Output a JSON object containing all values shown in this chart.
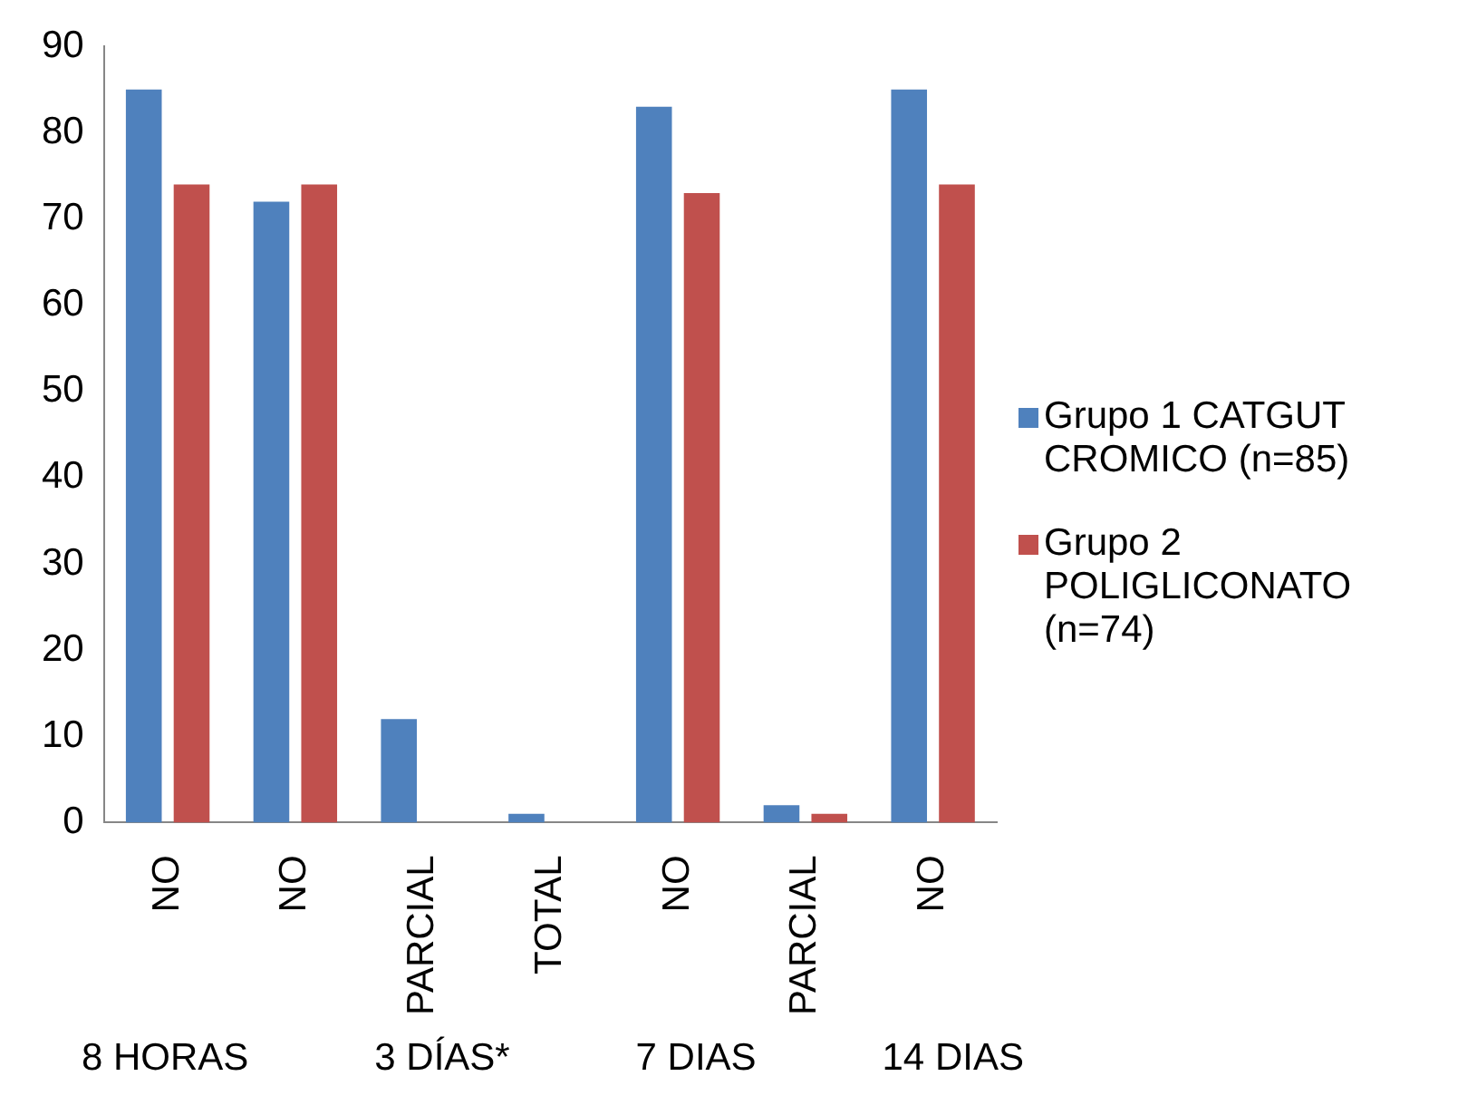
{
  "chart_data": {
    "type": "bar",
    "categories": [
      "NO",
      "NO",
      "PARCIAL",
      "TOTAL",
      "NO",
      "PARCIAL",
      "NO"
    ],
    "series": [
      {
        "name": "Grupo 1 CATGUT CROMICO (n=85)",
        "color": "#4f81bd",
        "values": [
          85,
          72,
          12,
          1,
          83,
          2,
          85
        ]
      },
      {
        "name": "Grupo 2 POLIGLICONATO (n=74)",
        "color": "#c0504d",
        "values": [
          74,
          74,
          0,
          0,
          73,
          1,
          74
        ]
      }
    ],
    "ylim": [
      0,
      90
    ],
    "yticks": [
      0,
      10,
      20,
      30,
      40,
      50,
      60,
      70,
      80,
      90
    ],
    "grid": false,
    "legend": "right",
    "annotations": [
      "8 HORAS",
      "3 DÍAS*",
      "7 DIAS",
      "14 DIAS"
    ]
  }
}
